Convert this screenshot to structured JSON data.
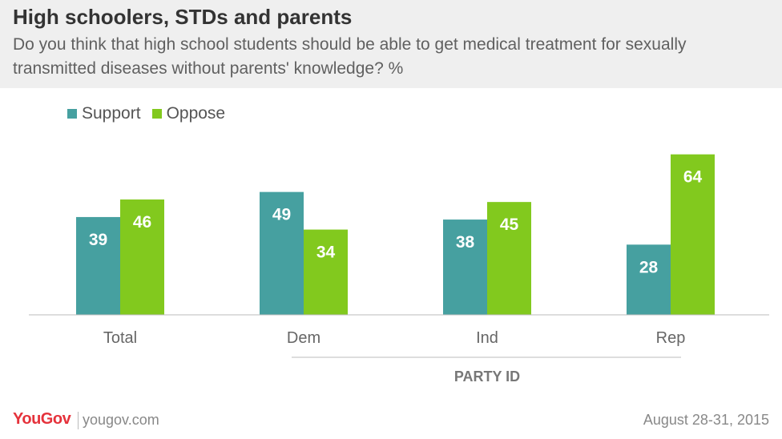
{
  "title": "High schoolers, STDs and parents",
  "subtitle": "Do you think that high school students should be able to get medical treatment for sexually transmitted diseases without parents' knowledge? %",
  "colors": {
    "support": "#46a0a0",
    "oppose": "#82c91e"
  },
  "chart_data": {
    "type": "bar",
    "categories": [
      "Total",
      "Dem",
      "Ind",
      "Rep"
    ],
    "series": [
      {
        "name": "Support",
        "values": [
          39,
          49,
          38,
          28
        ]
      },
      {
        "name": "Oppose",
        "values": [
          46,
          34,
          45,
          64
        ]
      }
    ],
    "group_label": "PARTY ID",
    "ylim": [
      0,
      70
    ],
    "grid": false,
    "legend": "top-left"
  },
  "footer": {
    "brand": "YouGov",
    "url": "yougov.com",
    "date": "August 28-31, 2015"
  }
}
